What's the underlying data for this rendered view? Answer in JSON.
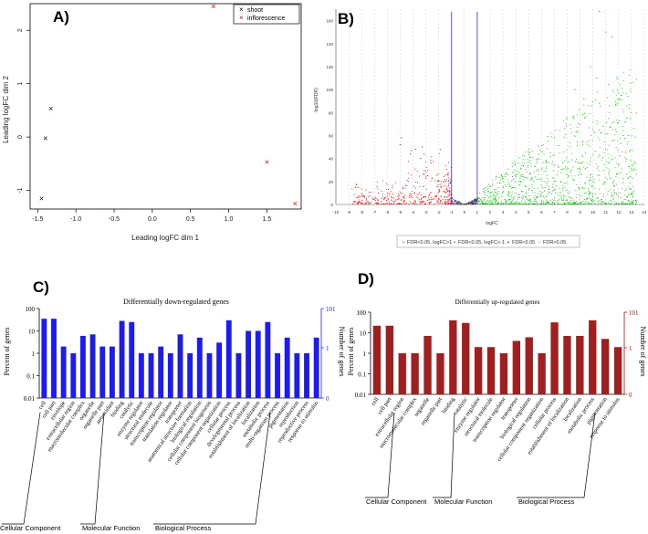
{
  "chart_data": [
    {
      "panel": "A)",
      "type": "scatter",
      "xlabel": "Leading logFC dim 1",
      "ylabel": "Leading logFC dim 2",
      "xlim": [
        -1.6,
        1.95
      ],
      "ylim": [
        -1.35,
        2.5
      ],
      "xticks": [
        "-1.5",
        "-1.0",
        "-0.5",
        "0.0",
        "0.5",
        "1.0",
        "1.5"
      ],
      "xtick_vals": [
        -1.5,
        -1.0,
        -0.5,
        0.0,
        0.5,
        1.0,
        1.5
      ],
      "yticks": [
        "-1",
        "0",
        "1",
        "2"
      ],
      "ytick_vals": [
        -1,
        0,
        1,
        2
      ],
      "marker": "×",
      "legend": [
        {
          "name": "shoot",
          "color": "#000000"
        },
        {
          "name": "inflorescence",
          "color": "#ff0000"
        }
      ],
      "series": [
        {
          "name": "shoot",
          "color": "#000000",
          "x": [
            -1.45,
            -1.4,
            -1.33
          ],
          "y": [
            -1.15,
            -0.02,
            0.53
          ]
        },
        {
          "name": "inflorescence",
          "color": "#ff0000",
          "x": [
            0.8,
            1.5,
            1.87
          ],
          "y": [
            2.45,
            -0.47,
            -1.25
          ]
        }
      ]
    },
    {
      "panel": "B)",
      "type": "scatter",
      "xlabel": "logFC",
      "ylabel": "-log10(FDR)",
      "xlim": [
        -10,
        14
      ],
      "ylim": [
        0,
        170
      ],
      "xticks": [
        "-10",
        "-9",
        "-8",
        "-7",
        "-6",
        "-5",
        "-4",
        "-3",
        "-2",
        "-1",
        "0",
        "1",
        "2",
        "3",
        "4",
        "5",
        "6",
        "7",
        "8",
        "9",
        "10",
        "11",
        "12",
        "13",
        "14"
      ],
      "xtick_vals": [
        -10,
        -9,
        -8,
        -7,
        -6,
        -5,
        -4,
        -3,
        -2,
        -1,
        0,
        1,
        2,
        3,
        4,
        5,
        6,
        7,
        8,
        9,
        10,
        11,
        12,
        13,
        14
      ],
      "yticks": [
        "0",
        "20",
        "40",
        "60",
        "80",
        "100",
        "120",
        "140",
        "160"
      ],
      "ytick_vals": [
        0,
        20,
        40,
        60,
        80,
        100,
        120,
        140,
        160
      ],
      "vlines": [
        -1,
        1
      ],
      "legend": [
        {
          "name": "FDR<0.05, logFC>1",
          "color": "#00cc00"
        },
        {
          "name": "FDR<0.05, logFC<-1",
          "color": "#ff0000"
        },
        {
          "name": "FDR<0.05",
          "color": "#000000"
        },
        {
          "name": "FDR>0.05",
          "color": "#9999cc"
        }
      ]
    },
    {
      "panel": "C)",
      "type": "bar",
      "title": "Differentially down-regulated genes",
      "ylabel": "Percent of genes",
      "ylabel_right": "Number of genes",
      "yticks_left": [
        "100",
        "10",
        "1",
        "0.1",
        "0.01"
      ],
      "yticks_right": [
        "101",
        "1",
        "0"
      ],
      "ylim_log10": [
        -2,
        2
      ],
      "color": "#1c1cf0",
      "categories": [
        "cell",
        "cell part",
        "envelope",
        "extracellular region",
        "macromolecular complex",
        "organelle",
        "organelle part",
        "antioxidant",
        "binding",
        "catalytic",
        "enzyme regulator",
        "structural molecule",
        "transcription regulator",
        "translation regulator",
        "transporter",
        "anatomical structure formation",
        "biological regulation",
        "cellular component biogenesis",
        "cellular component organization",
        "cellular process",
        "developmental process",
        "establishment of localization",
        "localization",
        "metabolic process",
        "multi-organism process",
        "pigmentation",
        "reproduction",
        "reproductive process",
        "response to stimulus"
      ],
      "values": [
        35,
        35,
        2,
        1,
        6,
        7,
        2,
        2,
        28,
        25,
        1,
        1,
        2,
        1,
        7,
        1,
        5,
        1,
        3,
        30,
        1,
        10,
        10,
        25,
        1,
        5,
        1,
        1,
        5
      ],
      "groups": [
        "Cellular Component",
        "Molecular Function",
        "Biological Process"
      ]
    },
    {
      "panel": "D)",
      "type": "bar",
      "title": "Differentially up-regulated genes",
      "ylabel": "Percent of genes",
      "ylabel_right": "Number of genes",
      "yticks_left": [
        "100",
        "10",
        "1",
        "0.1",
        "0.01"
      ],
      "yticks_right": [
        "101",
        "1",
        "0"
      ],
      "ylim_log10": [
        -2,
        2
      ],
      "color": "#a02020",
      "categories": [
        "cell",
        "cell part",
        "extracellular region",
        "macromolecular complex",
        "organelle",
        "organelle part",
        "binding",
        "catalytic",
        "enzyme regulator",
        "structural molecule",
        "transcription regulator",
        "transporter",
        "biological regulation",
        "cellular component organization",
        "cellular process",
        "establishment of localization",
        "localization",
        "metabolic process",
        "pigmentation",
        "response to stimulus"
      ],
      "values": [
        22,
        22,
        1,
        1,
        7,
        1,
        40,
        30,
        2,
        2,
        1,
        4,
        6,
        1,
        32,
        7,
        7,
        40,
        5,
        2
      ],
      "groups": [
        "Cellular Component",
        "Molecular Function",
        "Biological Process"
      ]
    }
  ]
}
